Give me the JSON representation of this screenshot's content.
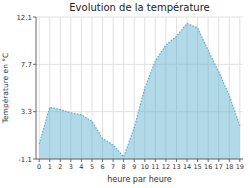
{
  "chart_data": {
    "type": "area",
    "title": "Evolution de la température",
    "x_label": "heure par heure",
    "y_label": "Température en °C",
    "x": [
      0,
      1,
      2,
      3,
      4,
      5,
      6,
      7,
      8,
      9,
      10,
      11,
      12,
      13,
      14,
      15,
      16,
      17,
      18,
      19
    ],
    "values": [
      0.3,
      3.7,
      3.5,
      3.2,
      3.0,
      2.4,
      0.8,
      0.2,
      -0.9,
      1.8,
      5.5,
      8.0,
      9.5,
      10.3,
      11.5,
      11.1,
      9.0,
      7.0,
      4.8,
      2.0
    ],
    "color": "#55aacc",
    "line_style": "dotted",
    "xlim": [
      -0.3,
      19.3
    ],
    "xticks": [
      0,
      1,
      2,
      3,
      4,
      5,
      6,
      7,
      8,
      9,
      10,
      11,
      12,
      13,
      14,
      15,
      16,
      17,
      18,
      19
    ],
    "ylim": [
      -1.1,
      12.1
    ],
    "yticks": [
      -1.1,
      3.3,
      7.7,
      12.1
    ],
    "grid": true
  }
}
